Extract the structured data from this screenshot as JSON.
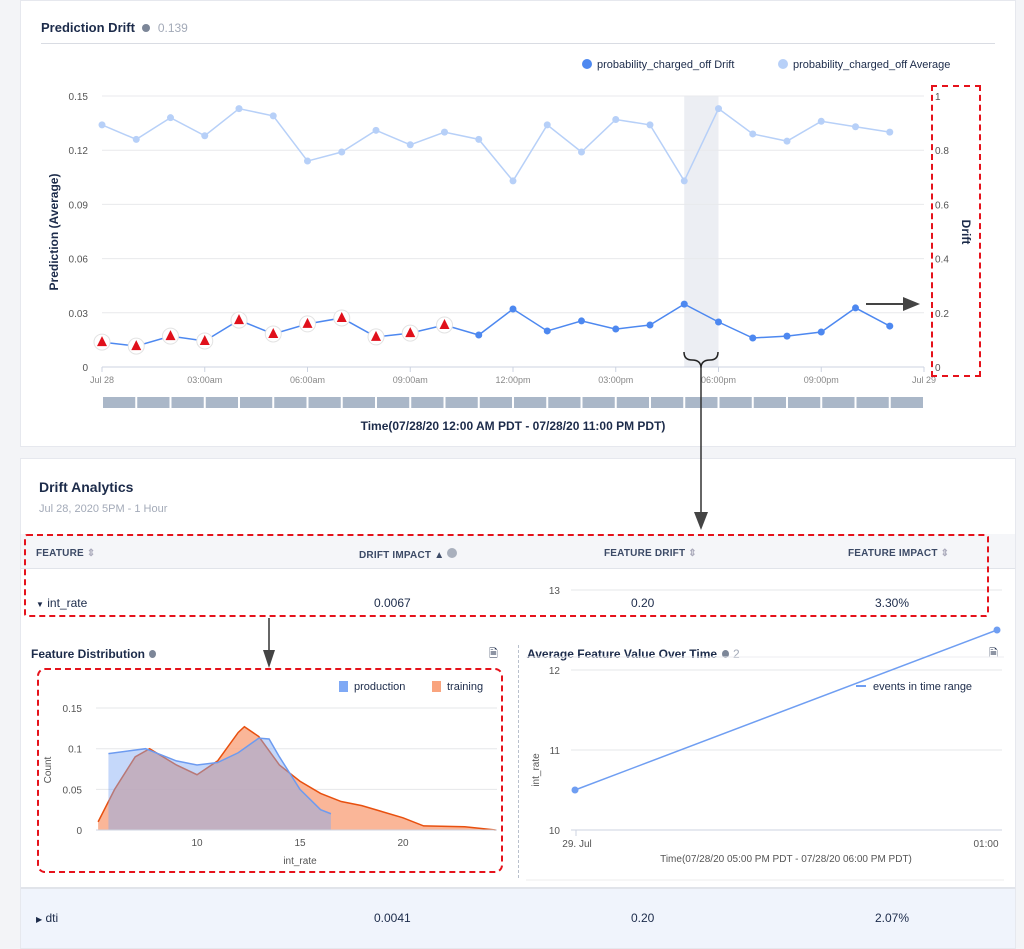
{
  "prediction_drift": {
    "title": "Prediction Drift",
    "value": "0.139",
    "legend": [
      {
        "name": "probability_charged_off Drift",
        "color": "#4d88f0"
      },
      {
        "name": "probability_charged_off Average",
        "color": "#b7d0f8"
      }
    ],
    "chart_data": {
      "type": "line",
      "x_labels": [
        "Jul 28",
        "03:00am",
        "06:00am",
        "09:00am",
        "12:00pm",
        "03:00pm",
        "06:00pm",
        "09:00pm",
        "Jul 29"
      ],
      "x": [
        "00:00",
        "01:00",
        "02:00",
        "03:00",
        "04:00",
        "05:00",
        "06:00",
        "07:00",
        "08:00",
        "09:00",
        "10:00",
        "11:00",
        "12:00",
        "13:00",
        "14:00",
        "15:00",
        "16:00",
        "17:00",
        "18:00",
        "19:00",
        "20:00",
        "21:00",
        "22:00",
        "23:00"
      ],
      "ylabel_left": "Prediction (Average)",
      "ylabel_right": "Drift",
      "xlabel": "Time(07/28/20 12:00 AM PDT - 07/28/20 11:00 PM PDT)",
      "yticks_left": [
        "0",
        "0.03",
        "0.06",
        "0.09",
        "0.12",
        "0.15"
      ],
      "yticks_right": [
        "0",
        "0.2",
        "0.4",
        "0.6",
        "0.8",
        "1"
      ],
      "ylim_left": [
        0,
        0.15
      ],
      "ylim_right": [
        0,
        1
      ],
      "series": [
        {
          "name": "probability_charged_off Average",
          "axis": "left",
          "values": [
            0.134,
            0.126,
            0.138,
            0.128,
            0.143,
            0.139,
            0.114,
            0.119,
            0.131,
            0.123,
            0.13,
            0.126,
            0.103,
            0.134,
            0.119,
            0.137,
            0.134,
            0.103,
            0.143,
            0.129,
            0.125,
            0.136,
            0.133,
            0.13
          ]
        },
        {
          "name": "probability_charged_off Drift",
          "axis": "right",
          "values": [
            0.092,
            0.077,
            0.114,
            0.096,
            0.173,
            0.122,
            0.159,
            0.181,
            0.111,
            0.125,
            0.155,
            0.118,
            0.214,
            0.133,
            0.17,
            0.14,
            0.155,
            0.232,
            0.166,
            0.107,
            0.114,
            0.129,
            0.218,
            0.151
          ],
          "warnings": [
            true,
            true,
            true,
            true,
            true,
            true,
            true,
            true,
            true,
            true,
            true,
            false,
            false,
            false,
            false,
            false,
            false,
            false,
            false,
            false,
            false,
            false,
            false,
            false
          ]
        }
      ],
      "highlighted_range": [
        "17:00",
        "18:00"
      ]
    }
  },
  "drift_analytics": {
    "title": "Drift Analytics",
    "subtitle": "Jul 28, 2020 5PM - 1 Hour",
    "columns": [
      "FEATURE",
      "DRIFT IMPACT",
      "FEATURE DRIFT",
      "FEATURE IMPACT"
    ],
    "rows": [
      {
        "feature": "int_rate",
        "drift_impact": "0.0067",
        "feature_drift": "0.20",
        "feature_impact": "3.30%",
        "expanded": true
      },
      {
        "feature": "dti",
        "drift_impact": "0.0041",
        "feature_drift": "0.20",
        "feature_impact": "2.07%",
        "expanded": false
      }
    ]
  },
  "feature_distribution": {
    "title": "Feature Distribution",
    "chart_data": {
      "type": "area",
      "xlabel": "int_rate",
      "ylabel": "Count",
      "xticks": [
        "10",
        "15",
        "20"
      ],
      "yticks": [
        "0",
        "0.05",
        "0.1",
        "0.15"
      ],
      "xlim": [
        5.2,
        24.5
      ],
      "ylim": [
        0,
        0.15
      ],
      "series": [
        {
          "name": "production",
          "color": "#7fa9f5",
          "x": [
            5.7,
            7.5,
            9,
            10,
            11,
            12,
            13,
            13.5,
            14,
            15,
            16,
            16.5
          ],
          "y": [
            0.094,
            0.1,
            0.085,
            0.08,
            0.083,
            0.095,
            0.113,
            0.112,
            0.09,
            0.05,
            0.025,
            0.02
          ]
        },
        {
          "name": "training",
          "color": "#f9a47e",
          "x": [
            5.2,
            6,
            7,
            7.7,
            9,
            10,
            11,
            12,
            12.3,
            13,
            14,
            15,
            16,
            17,
            18,
            20,
            21,
            23,
            24.5
          ],
          "y": [
            0.01,
            0.05,
            0.09,
            0.1,
            0.08,
            0.068,
            0.085,
            0.12,
            0.127,
            0.115,
            0.08,
            0.06,
            0.045,
            0.035,
            0.03,
            0.015,
            0.005,
            0.004,
            0.0
          ]
        }
      ]
    }
  },
  "avg_feature": {
    "title": "Average Feature Value Over Time",
    "count": "2",
    "chart_data": {
      "type": "line",
      "xlabel": "Time(07/28/20 05:00 PM PDT - 07/28/20 06:00 PM PDT)",
      "ylabel": "int_rate",
      "xticks": [
        "29. Jul",
        "01:00"
      ],
      "yticks": [
        "10",
        "11",
        "12",
        "13"
      ],
      "ylim": [
        10,
        13
      ],
      "series": [
        {
          "name": "events in time range",
          "color": "#6f9ef2",
          "values": [
            10.5,
            12.5
          ]
        }
      ]
    }
  }
}
